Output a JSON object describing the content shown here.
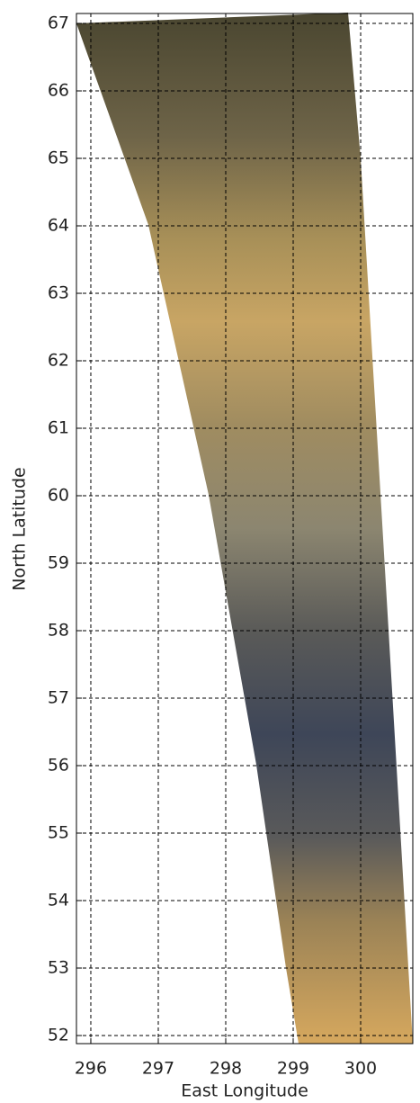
{
  "chart_data": {
    "type": "map",
    "x_label": "East Longitude",
    "y_label": "North Latitude",
    "xlim": [
      295.787,
      300.773
    ],
    "ylim": [
      51.88,
      67.147
    ],
    "xticks": [
      296,
      297,
      298,
      299,
      300
    ],
    "yticks": [
      52,
      53,
      54,
      55,
      56,
      57,
      58,
      59,
      60,
      61,
      62,
      63,
      64,
      65,
      66,
      67
    ],
    "grid": true
  }
}
